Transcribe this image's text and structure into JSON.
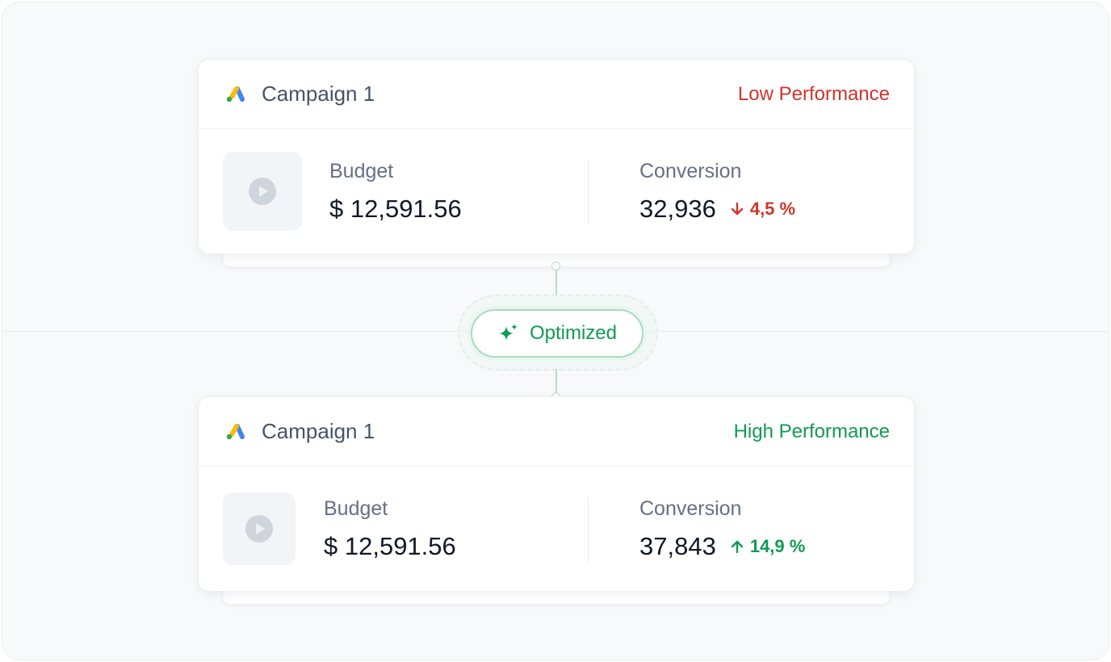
{
  "connector": {
    "optimized_label": "Optimized",
    "icon": "sparkle-icon",
    "accent": "#119a55"
  },
  "cards": [
    {
      "title": "Campaign 1",
      "performance": "Low Performance",
      "performance_color": "#d1342b",
      "budget_label": "Budget",
      "budget_value": "$ 12,591.56",
      "conversion_label": "Conversion",
      "conversion_value": "32,936",
      "change": "4,5 %",
      "change_direction": "down",
      "logo": "google-ads-logo",
      "thumbnail_icon": "play-icon"
    },
    {
      "title": "Campaign 1",
      "performance": "High Performance",
      "performance_color": "#119a55",
      "budget_label": "Budget",
      "budget_value": "$ 12,591.56",
      "conversion_label": "Conversion",
      "conversion_value": "37,843",
      "change": "14,9 %",
      "change_direction": "up",
      "logo": "google-ads-logo",
      "thumbnail_icon": "play-icon"
    }
  ]
}
